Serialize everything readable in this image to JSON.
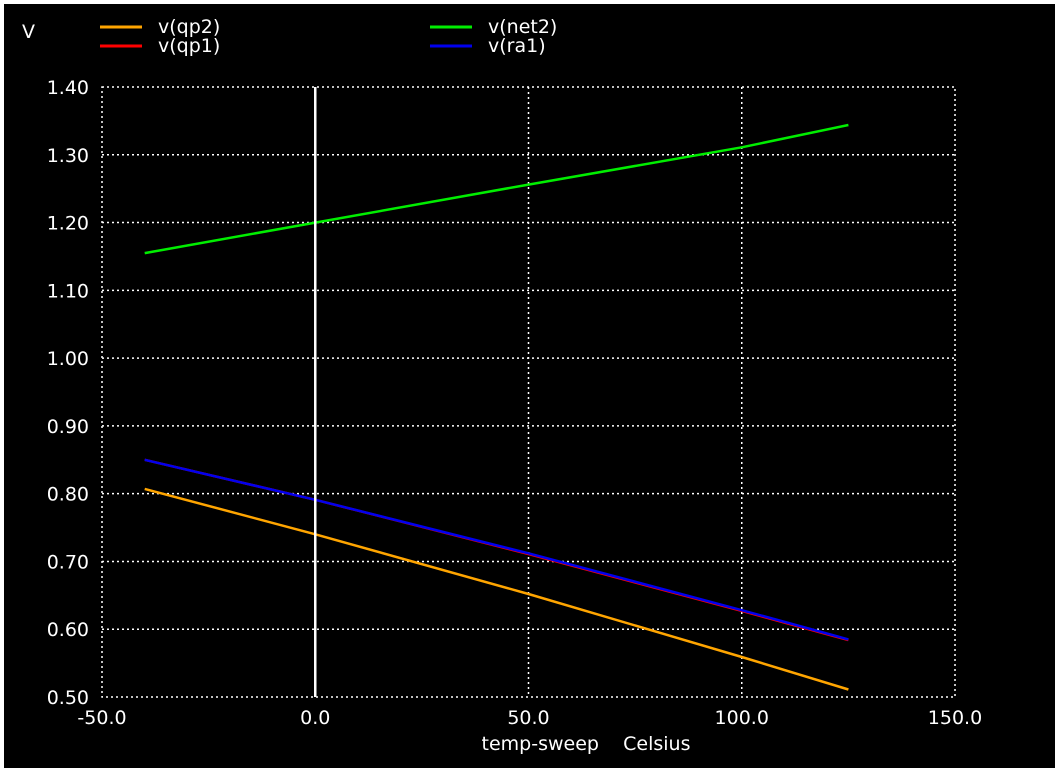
{
  "chart_data": {
    "type": "line",
    "ylabel": "V",
    "xlabel": "temp-sweep    Celsius",
    "xlim": [
      -50,
      150
    ],
    "ylim": [
      0.5,
      1.4
    ],
    "xticks": [
      -50,
      0,
      50,
      100,
      150
    ],
    "xtick_labels": [
      "-50.0",
      "0.0",
      "50.0",
      "100.0",
      "150.0"
    ],
    "yticks": [
      0.5,
      0.6,
      0.7,
      0.8,
      0.9,
      1.0,
      1.1,
      1.2,
      1.3,
      1.4
    ],
    "ytick_labels": [
      "0.50",
      "0.60",
      "0.70",
      "0.80",
      "0.90",
      "1.00",
      "1.10",
      "1.20",
      "1.30",
      "1.40"
    ],
    "grid": true,
    "legend_placement": "top",
    "cursor_x": 0,
    "series": [
      {
        "name": "v(qp2)",
        "color": "#ffa500",
        "x": [
          -40,
          0,
          50,
          100,
          125
        ],
        "y": [
          0.807,
          0.74,
          0.652,
          0.559,
          0.511
        ]
      },
      {
        "name": "v(qp1)",
        "color": "#ff0000",
        "x": [
          -40,
          0,
          50,
          100,
          125
        ],
        "y": [
          0.85,
          0.791,
          0.711,
          0.627,
          0.584
        ]
      },
      {
        "name": "v(net2)",
        "color": "#00ee00",
        "x": [
          -40,
          0,
          50,
          100,
          125
        ],
        "y": [
          1.155,
          1.2,
          1.256,
          1.311,
          1.344
        ]
      },
      {
        "name": "v(ra1)",
        "color": "#0000ee",
        "x": [
          -40,
          0,
          50,
          100,
          125
        ],
        "y": [
          0.85,
          0.791,
          0.712,
          0.628,
          0.585
        ]
      }
    ]
  }
}
